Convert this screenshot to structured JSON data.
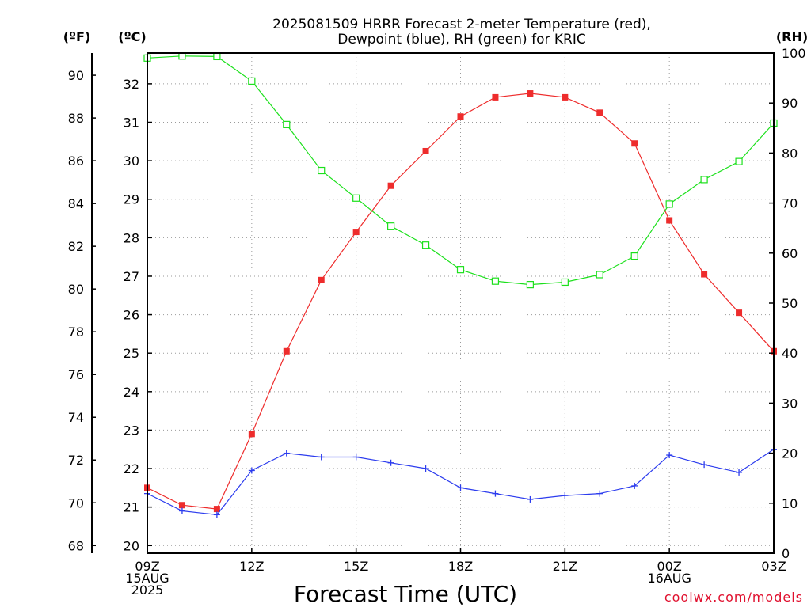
{
  "chart_data": {
    "type": "line",
    "title_lines": [
      "2025081509 HRRR Forecast 2-meter Temperature (red),",
      "Dewpoint (blue), RH (green) for KRIC"
    ],
    "xlabel": "Forecast Time (UTC)",
    "credit": "coolwx.com/models",
    "grid": true,
    "hours": [
      9,
      10,
      11,
      12,
      13,
      14,
      15,
      16,
      17,
      18,
      19,
      20,
      21,
      22,
      23,
      24,
      25,
      26,
      27
    ],
    "x_ticks": [
      {
        "hour": 9,
        "lines": [
          "09Z",
          "15AUG",
          "2025"
        ]
      },
      {
        "hour": 12,
        "lines": [
          "12Z"
        ]
      },
      {
        "hour": 15,
        "lines": [
          "15Z"
        ]
      },
      {
        "hour": 18,
        "lines": [
          "18Z"
        ]
      },
      {
        "hour": 21,
        "lines": [
          "21Z"
        ]
      },
      {
        "hour": 24,
        "lines": [
          "00Z",
          "16AUG"
        ]
      },
      {
        "hour": 27,
        "lines": [
          "03Z"
        ]
      }
    ],
    "axes": {
      "fahrenheit": {
        "unit_label": "(ºF)",
        "ticks": [
          68,
          70,
          72,
          74,
          76,
          78,
          80,
          82,
          84,
          86,
          88,
          90
        ]
      },
      "celsius": {
        "unit_label": "(ºC)",
        "ylim": [
          19.8,
          32.8
        ],
        "ticks": [
          20,
          21,
          22,
          23,
          24,
          25,
          26,
          27,
          28,
          29,
          30,
          31,
          32
        ]
      },
      "rh": {
        "unit_label": "(RH)",
        "ylim": [
          0,
          100
        ],
        "ticks": [
          0,
          10,
          20,
          30,
          40,
          50,
          60,
          70,
          80,
          90,
          100
        ]
      }
    },
    "series": [
      {
        "name": "Temperature",
        "axis": "celsius",
        "color": "#ee2c2c",
        "marker": "filled-square",
        "values": [
          21.5,
          21.05,
          20.95,
          22.9,
          25.05,
          26.9,
          28.15,
          29.35,
          30.25,
          31.15,
          31.65,
          31.75,
          31.65,
          31.25,
          30.45,
          28.45,
          27.05,
          26.05,
          25.05
        ]
      },
      {
        "name": "Dewpoint",
        "axis": "celsius",
        "color": "#2c3cee",
        "marker": "plus",
        "values": [
          21.35,
          20.9,
          20.8,
          21.95,
          22.4,
          22.3,
          22.3,
          22.15,
          22.0,
          21.5,
          21.35,
          21.2,
          21.3,
          21.35,
          21.55,
          22.35,
          22.1,
          21.9,
          22.5
        ]
      },
      {
        "name": "RH",
        "axis": "rh",
        "color": "#1ce01c",
        "marker": "open-square",
        "values": [
          99,
          99.4,
          99.3,
          94.4,
          85.7,
          76.5,
          71.0,
          65.4,
          61.6,
          56.7,
          54.4,
          53.7,
          54.2,
          55.7,
          59.4,
          69.8,
          74.7,
          78.3,
          86.0
        ]
      }
    ]
  }
}
